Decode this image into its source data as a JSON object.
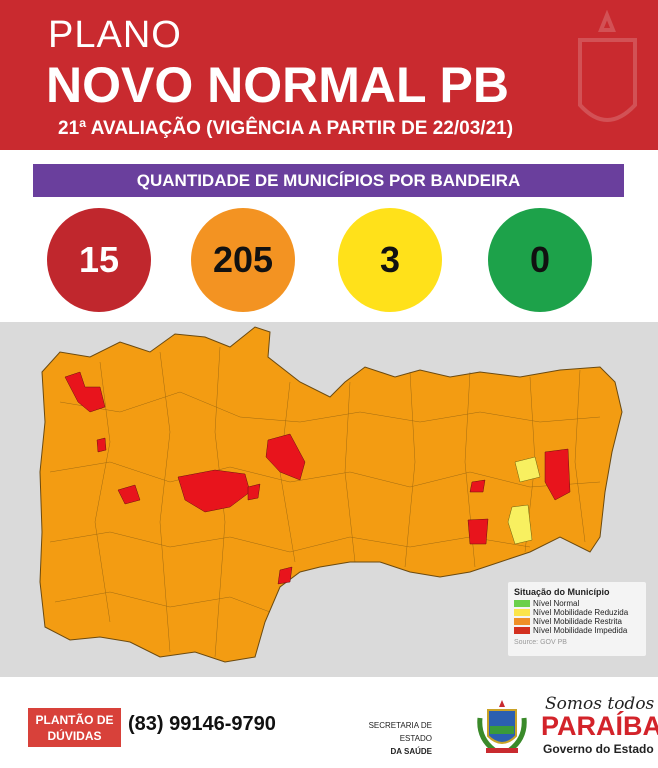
{
  "header": {
    "line1": "PLANO",
    "line2": "NOVO NORMAL PB",
    "line3": "21ª AVALIAÇÃO (VIGÊNCIA A PARTIR DE 22/03/21)"
  },
  "banner": "QUANTIDADE DE MUNICÍPIOS POR BANDEIRA",
  "counts": [
    {
      "value": "15",
      "color": "#c0272d",
      "text_color": "#ffffff"
    },
    {
      "value": "205",
      "color": "#f39322",
      "text_color": "#111111"
    },
    {
      "value": "3",
      "color": "#ffe11a",
      "text_color": "#111111"
    },
    {
      "value": "0",
      "color": "#1da24a",
      "text_color": "#111111"
    }
  ],
  "map": {
    "fill_colors": {
      "restrita": "#f39c12",
      "impedida": "#e8141c",
      "reduzida": "#f8f060"
    },
    "legend": {
      "title": "Situação do Município",
      "items": [
        {
          "label": "Nível Normal",
          "color": "#6ad04a"
        },
        {
          "label": "Nível Mobilidade Reduzida",
          "color": "#fbe54a"
        },
        {
          "label": "Nível Mobilidade Restrita",
          "color": "#ef8f27"
        },
        {
          "label": "Nível Mobilidade Impedida",
          "color": "#d3301f"
        }
      ],
      "source": "Source: GOV PB"
    }
  },
  "footer": {
    "plantao": "PLANTÃO DE DÚVIDAS",
    "phone": "(83) 99146-9790",
    "secretaria_1": "SECRETARIA DE ESTADO",
    "secretaria_2": "DA SAÚDE",
    "slogan": "Somos todos",
    "state": "PARAÍBA",
    "gov": "Governo do Estado"
  }
}
